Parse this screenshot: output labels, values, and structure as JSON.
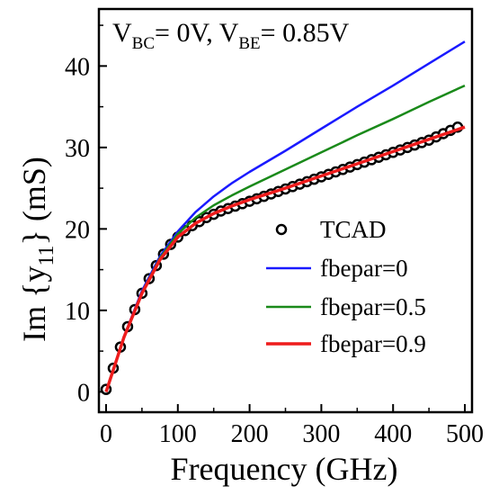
{
  "chart_data": {
    "type": "line",
    "xlabel": "Frequency (GHz)",
    "ylabel_main": "Im {y",
    "ylabel_sub": "11",
    "ylabel_tail": "} (mS)",
    "annotation": {
      "v1": "V",
      "s1": "BC",
      "t1": "= 0V, V",
      "s2": "BE",
      "t2": "= 0.85V"
    },
    "xlim": [
      -10,
      510
    ],
    "ylim": [
      -2.5,
      47
    ],
    "xticks": [
      0,
      100,
      200,
      300,
      400,
      500
    ],
    "yticks": [
      0,
      10,
      20,
      30,
      40
    ],
    "grid": false,
    "legend_position": "bottom-right",
    "series": [
      {
        "name": "TCAD",
        "kind": "scatter",
        "color": "#000000",
        "x": [
          0,
          10,
          20,
          30,
          40,
          50,
          60,
          70,
          80,
          90,
          100,
          110,
          120,
          130,
          140,
          150,
          160,
          170,
          180,
          190,
          200,
          210,
          220,
          230,
          240,
          250,
          260,
          270,
          280,
          290,
          300,
          310,
          320,
          330,
          340,
          350,
          360,
          370,
          380,
          390,
          400,
          410,
          420,
          430,
          440,
          450,
          460,
          470,
          480,
          490
        ],
        "y": [
          0.3,
          2.9,
          5.5,
          8.0,
          10.1,
          12.1,
          13.9,
          15.5,
          16.9,
          18.1,
          19.0,
          19.8,
          20.4,
          20.9,
          21.4,
          21.8,
          22.2,
          22.5,
          22.8,
          23.1,
          23.4,
          23.7,
          24.0,
          24.3,
          24.6,
          24.9,
          25.2,
          25.5,
          25.8,
          26.1,
          26.4,
          26.7,
          27.0,
          27.3,
          27.6,
          27.9,
          28.2,
          28.5,
          28.8,
          29.1,
          29.4,
          29.7,
          30.0,
          30.3,
          30.6,
          30.9,
          31.3,
          31.7,
          32.1,
          32.5
        ]
      },
      {
        "name": "fbepar=0",
        "kind": "line",
        "color": "#1a1aff",
        "x": [
          0,
          25,
          50,
          75,
          100,
          125,
          150,
          175,
          200,
          250,
          300,
          350,
          400,
          450,
          500
        ],
        "y": [
          0,
          6.8,
          12.4,
          16.6,
          19.7,
          22.1,
          24.0,
          25.6,
          27.0,
          29.6,
          32.3,
          35.0,
          37.6,
          40.3,
          43.0
        ]
      },
      {
        "name": "fbepar=0.5",
        "kind": "line",
        "color": "#1a8a1a",
        "x": [
          0,
          25,
          50,
          75,
          100,
          125,
          150,
          175,
          200,
          250,
          300,
          350,
          400,
          450,
          500
        ],
        "y": [
          0,
          6.7,
          12.2,
          16.4,
          19.4,
          21.4,
          22.9,
          24.1,
          25.2,
          27.3,
          29.4,
          31.5,
          33.5,
          35.6,
          37.6
        ]
      },
      {
        "name": "fbepar=0.9",
        "kind": "line",
        "color": "#ee1c1c",
        "x": [
          0,
          25,
          50,
          75,
          100,
          125,
          150,
          175,
          200,
          250,
          300,
          350,
          400,
          450,
          500
        ],
        "y": [
          0,
          6.7,
          12.1,
          16.2,
          19.0,
          20.7,
          21.9,
          22.8,
          23.6,
          25.0,
          26.5,
          28.0,
          29.5,
          31.0,
          32.5
        ]
      }
    ]
  }
}
